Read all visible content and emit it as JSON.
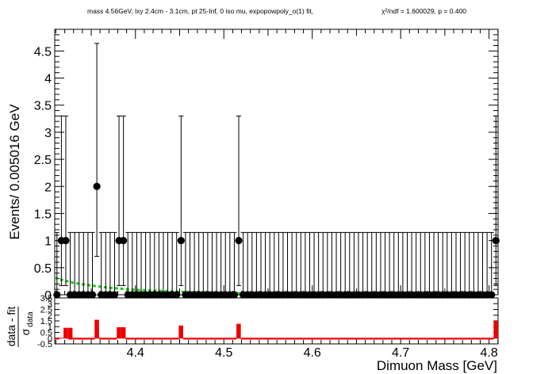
{
  "title": "mass 4.56GeV, lxy 2.4cm - 3.1cm, pt 25-Inf, 0 iso mu, expopowpoly_o(1) fit,",
  "fit_stat": "χ²/ndf = 1.600029, p = 0.400",
  "chart_data": [
    {
      "type": "scatter",
      "panel": "main",
      "xlabel": "Dimuon Mass [GeV]",
      "ylabel": "Events/ 0.005016 GeV",
      "xlim": [
        4.3087,
        4.8102
      ],
      "ylim": [
        0,
        4.9
      ],
      "y_ticks": [
        "0",
        "0.5",
        "1",
        "1.5",
        "2",
        "2.5",
        "3",
        "3.5",
        "4",
        "4.5"
      ],
      "x_ticks": [
        "4.4",
        "4.5",
        "4.6",
        "4.7",
        "4.8"
      ],
      "colors": {
        "data": "#000000",
        "fit": "#22cc22",
        "residual": "#ee0000"
      },
      "series": [
        {
          "name": "data",
          "bin_width": 0.005016,
          "x_first": 4.3112,
          "values": [
            0,
            1,
            1,
            0,
            0,
            0,
            0,
            0,
            0,
            2,
            0,
            0,
            0,
            0,
            1,
            1,
            0,
            0,
            0,
            0,
            0,
            0,
            0,
            0,
            0,
            0,
            0,
            0,
            1,
            0,
            0,
            0,
            0,
            0,
            0,
            0,
            0,
            0,
            0,
            0,
            0,
            1,
            0,
            0,
            0,
            0,
            0,
            0,
            0,
            0,
            0,
            0,
            0,
            0,
            0,
            0,
            0,
            0,
            0,
            0,
            0,
            0,
            0,
            0,
            0,
            0,
            0,
            0,
            0,
            0,
            0,
            0,
            0,
            0,
            0,
            0,
            0,
            0,
            0,
            0,
            0,
            0,
            0,
            0,
            0,
            0,
            0,
            0,
            0,
            0,
            0,
            0,
            0,
            0,
            0,
            0,
            0,
            0,
            0,
            1
          ],
          "errors_low": [
            0,
            0.83,
            0.83,
            0,
            0,
            0,
            0,
            0,
            0,
            1.29,
            0,
            0,
            0,
            0,
            0.83,
            0.83,
            0,
            0,
            0,
            0,
            0,
            0,
            0,
            0,
            0,
            0,
            0,
            0,
            0.83,
            0,
            0,
            0,
            0,
            0,
            0,
            0,
            0,
            0,
            0,
            0,
            0,
            0.83,
            0,
            0,
            0,
            0,
            0,
            0,
            0,
            0,
            0,
            0,
            0,
            0,
            0,
            0,
            0,
            0,
            0,
            0,
            0,
            0,
            0,
            0,
            0,
            0,
            0,
            0,
            0,
            0,
            0,
            0,
            0,
            0,
            0,
            0,
            0,
            0,
            0,
            0,
            0,
            0,
            0,
            0,
            0,
            0,
            0,
            0,
            0,
            0,
            0,
            0,
            0,
            0,
            0,
            0,
            0,
            0,
            0,
            0.83
          ],
          "errors_high": [
            1.15,
            2.3,
            2.3,
            1.15,
            1.15,
            1.15,
            1.15,
            1.15,
            1.15,
            2.64,
            1.15,
            1.15,
            1.15,
            1.15,
            2.3,
            2.3,
            1.15,
            1.15,
            1.15,
            1.15,
            1.15,
            1.15,
            1.15,
            1.15,
            1.15,
            1.15,
            1.15,
            1.15,
            2.3,
            1.15,
            1.15,
            1.15,
            1.15,
            1.15,
            1.15,
            1.15,
            1.15,
            1.15,
            1.15,
            1.15,
            1.15,
            2.3,
            1.15,
            1.15,
            1.15,
            1.15,
            1.15,
            1.15,
            1.15,
            1.15,
            1.15,
            1.15,
            1.15,
            1.15,
            1.15,
            1.15,
            1.15,
            1.15,
            1.15,
            1.15,
            1.15,
            1.15,
            1.15,
            1.15,
            1.15,
            1.15,
            1.15,
            1.15,
            1.15,
            1.15,
            1.15,
            1.15,
            1.15,
            1.15,
            1.15,
            1.15,
            1.15,
            1.15,
            1.15,
            1.15,
            1.15,
            1.15,
            1.15,
            1.15,
            1.15,
            1.15,
            1.15,
            1.15,
            1.15,
            1.15,
            1.15,
            1.15,
            1.15,
            1.15,
            1.15,
            1.15,
            1.15,
            1.15,
            1.15,
            2.3
          ]
        },
        {
          "name": "fit",
          "x": [
            4.3087,
            4.33,
            4.35,
            4.37,
            4.4,
            4.45,
            4.5,
            4.55,
            4.6,
            4.65,
            4.7,
            4.75,
            4.8102
          ],
          "values": [
            0.31,
            0.22,
            0.17,
            0.13,
            0.09,
            0.055,
            0.035,
            0.022,
            0.015,
            0.01,
            0.007,
            0.005,
            0.004
          ]
        }
      ]
    },
    {
      "type": "bar",
      "panel": "pull",
      "ylabel_num": "data - fit",
      "ylabel_den": "σ",
      "ylabel_sub": "data",
      "ylim": [
        -0.5,
        3.5
      ],
      "y_ticks": [
        "3.5",
        "3",
        "2.5",
        "2",
        "1.5",
        "1",
        "0.5",
        "0",
        "-0.5"
      ],
      "bars": [
        {
          "x": 4.3212,
          "value": 0.9
        },
        {
          "x": 4.3263,
          "value": 0.9
        },
        {
          "x": 4.3563,
          "value": 1.6
        },
        {
          "x": 4.3814,
          "value": 0.95
        },
        {
          "x": 4.3864,
          "value": 0.95
        },
        {
          "x": 4.4515,
          "value": 1.1
        },
        {
          "x": 4.5167,
          "value": 1.25
        },
        {
          "x": 4.8077,
          "value": 1.5
        }
      ]
    }
  ]
}
